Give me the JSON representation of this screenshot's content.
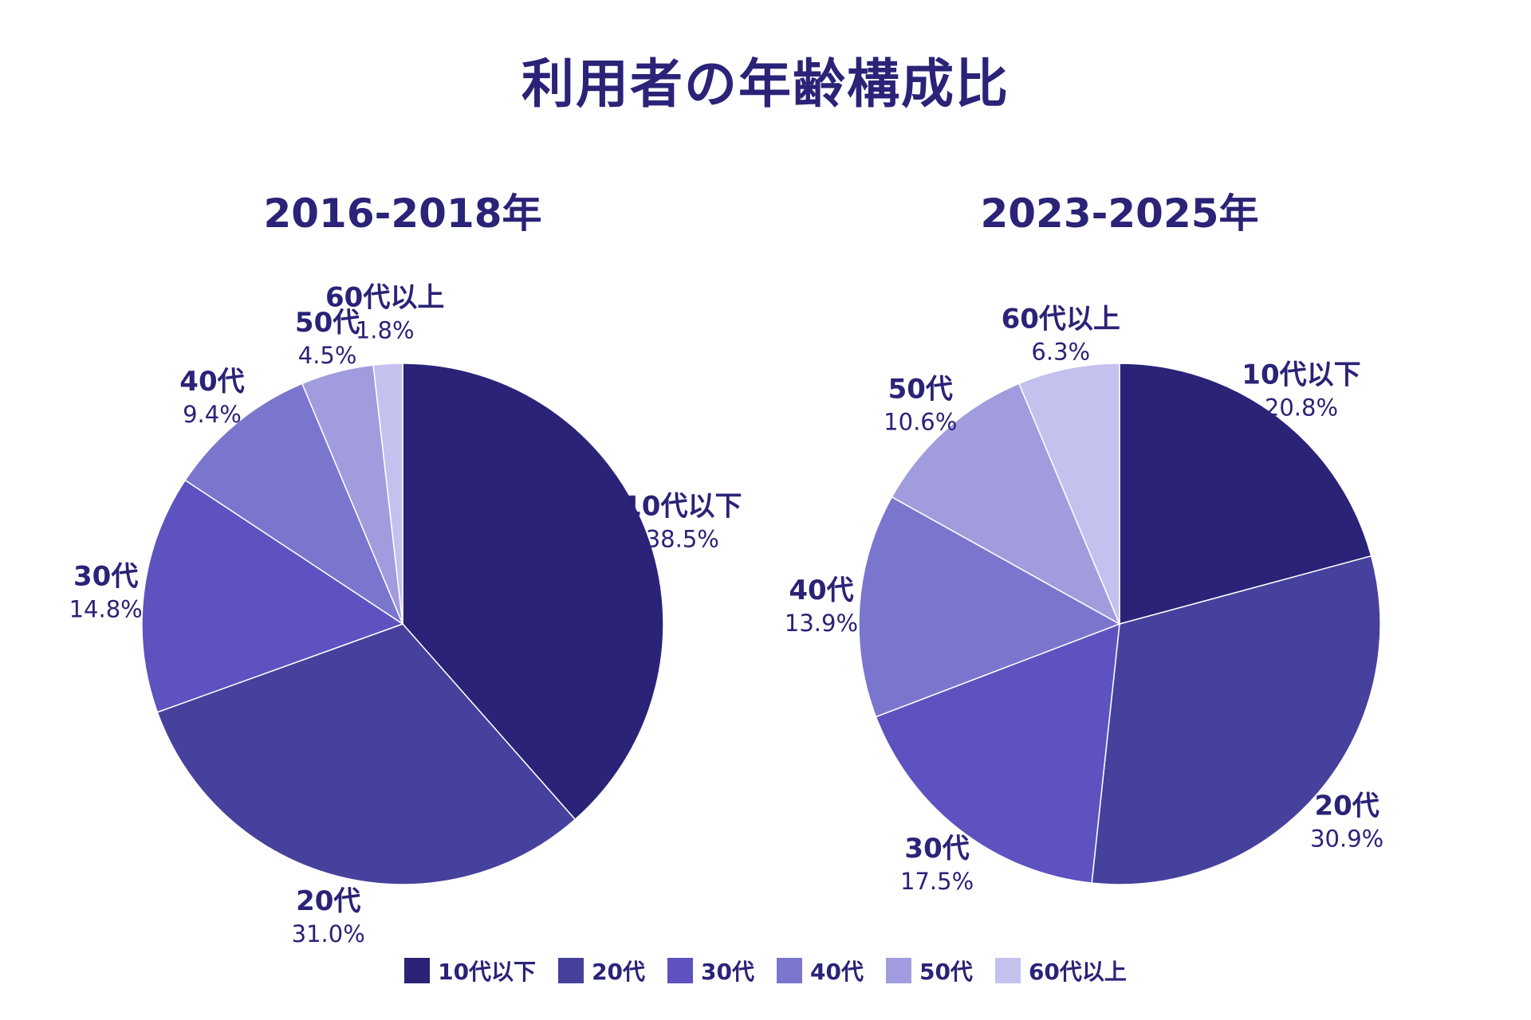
{
  "title": "利用者の年齢構成比",
  "categories": [
    "10代以下",
    "20代",
    "30代",
    "40代",
    "50代",
    "60代以上"
  ],
  "colors": [
    "#2a2377",
    "#46419c",
    "#5d52bf",
    "#7b76cd",
    "#a19cdd",
    "#c4c1ee"
  ],
  "legend_position": "bottom",
  "chart_data": [
    {
      "type": "pie",
      "title": "2016-2018年",
      "categories": [
        "10代以下",
        "20代",
        "30代",
        "40代",
        "50代",
        "60代以上"
      ],
      "values": [
        38.5,
        31.0,
        14.8,
        9.4,
        4.5,
        1.8
      ],
      "labels": [
        "38.5%",
        "31.0%",
        "14.8%",
        "9.4%",
        "4.5%",
        "1.8%"
      ]
    },
    {
      "type": "pie",
      "title": "2023-2025年",
      "categories": [
        "10代以下",
        "20代",
        "30代",
        "40代",
        "50代",
        "60代以上"
      ],
      "values": [
        20.8,
        30.9,
        17.5,
        13.9,
        10.6,
        6.3
      ],
      "labels": [
        "20.8%",
        "30.9%",
        "17.5%",
        "13.9%",
        "10.6%",
        "6.3%"
      ]
    }
  ]
}
